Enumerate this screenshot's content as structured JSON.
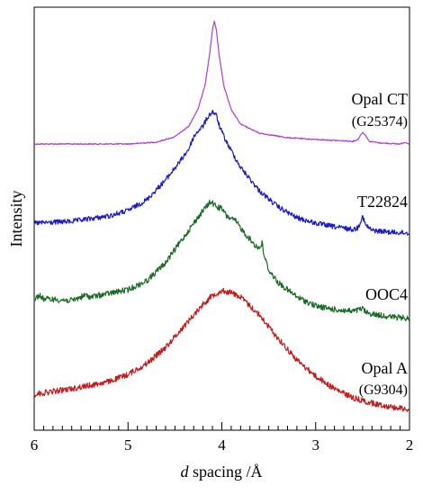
{
  "chart_data": {
    "type": "line",
    "xlabel_italic": "d",
    "xlabel_rest": " spacing /Å",
    "ylabel": "Intensity",
    "xlim": [
      6,
      2
    ],
    "x_reversed": true,
    "grid": false,
    "xticks": [
      6,
      5,
      4,
      3,
      2
    ],
    "xtick_labels": [
      "6",
      "5",
      "4",
      "3",
      "2"
    ],
    "series": [
      {
        "name": "Opal CT",
        "sublabel": "(G25374)",
        "color": "#b23ad6",
        "noise": 0.3,
        "points": [
          [
            6.0,
            160
          ],
          [
            5.0,
            160
          ],
          [
            4.7,
            158
          ],
          [
            4.5,
            152
          ],
          [
            4.35,
            140
          ],
          [
            4.25,
            120
          ],
          [
            4.18,
            95
          ],
          [
            4.13,
            60
          ],
          [
            4.1,
            33
          ],
          [
            4.08,
            24
          ],
          [
            4.06,
            32
          ],
          [
            4.03,
            60
          ],
          [
            3.98,
            95
          ],
          [
            3.9,
            122
          ],
          [
            3.8,
            138
          ],
          [
            3.6,
            148
          ],
          [
            3.3,
            153
          ],
          [
            3.0,
            155
          ],
          [
            2.6,
            157
          ],
          [
            2.55,
            155
          ],
          [
            2.52,
            150
          ],
          [
            2.5,
            147
          ],
          [
            2.47,
            150
          ],
          [
            2.43,
            157
          ],
          [
            2.3,
            159
          ],
          [
            2.1,
            160
          ],
          [
            2.05,
            158
          ],
          [
            2.0,
            160
          ]
        ]
      },
      {
        "name": "T22824",
        "sublabel": "",
        "color": "#1a1ac8",
        "noise": 1.4,
        "points": [
          [
            6.0,
            248
          ],
          [
            5.6,
            246
          ],
          [
            5.2,
            240
          ],
          [
            5.0,
            234
          ],
          [
            4.8,
            222
          ],
          [
            4.6,
            200
          ],
          [
            4.45,
            180
          ],
          [
            4.35,
            165
          ],
          [
            4.3,
            152
          ],
          [
            4.25,
            145
          ],
          [
            4.2,
            140
          ],
          [
            4.15,
            130
          ],
          [
            4.1,
            124
          ],
          [
            4.06,
            128
          ],
          [
            4.02,
            142
          ],
          [
            3.95,
            158
          ],
          [
            3.8,
            186
          ],
          [
            3.6,
            212
          ],
          [
            3.4,
            230
          ],
          [
            3.2,
            242
          ],
          [
            3.0,
            248
          ],
          [
            2.8,
            252
          ],
          [
            2.6,
            255
          ],
          [
            2.55,
            253
          ],
          [
            2.5,
            240
          ],
          [
            2.47,
            250
          ],
          [
            2.4,
            256
          ],
          [
            2.2,
            258
          ],
          [
            2.0,
            259
          ]
        ]
      },
      {
        "name": "OOC4",
        "sublabel": "",
        "color": "#1a6b26",
        "noise": 1.6,
        "points": [
          [
            6.0,
            333
          ],
          [
            5.95,
            328
          ],
          [
            5.9,
            332
          ],
          [
            5.6,
            334
          ],
          [
            5.45,
            328
          ],
          [
            5.4,
            330
          ],
          [
            5.0,
            322
          ],
          [
            4.8,
            312
          ],
          [
            4.6,
            292
          ],
          [
            4.45,
            270
          ],
          [
            4.3,
            248
          ],
          [
            4.2,
            234
          ],
          [
            4.12,
            224
          ],
          [
            4.05,
            230
          ],
          [
            4.0,
            232
          ],
          [
            3.95,
            240
          ],
          [
            3.85,
            246
          ],
          [
            3.75,
            260
          ],
          [
            3.65,
            272
          ],
          [
            3.6,
            276
          ],
          [
            3.57,
            270
          ],
          [
            3.55,
            284
          ],
          [
            3.5,
            300
          ],
          [
            3.4,
            314
          ],
          [
            3.2,
            330
          ],
          [
            3.0,
            340
          ],
          [
            2.8,
            344
          ],
          [
            2.6,
            346
          ],
          [
            2.5,
            343
          ],
          [
            2.45,
            348
          ],
          [
            2.2,
            352
          ],
          [
            2.0,
            354
          ]
        ]
      },
      {
        "name": "Opal A",
        "sublabel": "(G9304)",
        "color": "#c41a1a",
        "noise": 1.6,
        "points": [
          [
            6.0,
            438
          ],
          [
            5.6,
            432
          ],
          [
            5.2,
            424
          ],
          [
            5.0,
            416
          ],
          [
            4.8,
            404
          ],
          [
            4.6,
            386
          ],
          [
            4.4,
            362
          ],
          [
            4.2,
            338
          ],
          [
            4.1,
            328
          ],
          [
            4.0,
            323
          ],
          [
            3.9,
            325
          ],
          [
            3.8,
            330
          ],
          [
            3.6,
            350
          ],
          [
            3.4,
            376
          ],
          [
            3.2,
            400
          ],
          [
            3.0,
            418
          ],
          [
            2.8,
            432
          ],
          [
            2.6,
            442
          ],
          [
            2.4,
            448
          ],
          [
            2.2,
            452
          ],
          [
            2.0,
            455
          ]
        ]
      }
    ]
  }
}
